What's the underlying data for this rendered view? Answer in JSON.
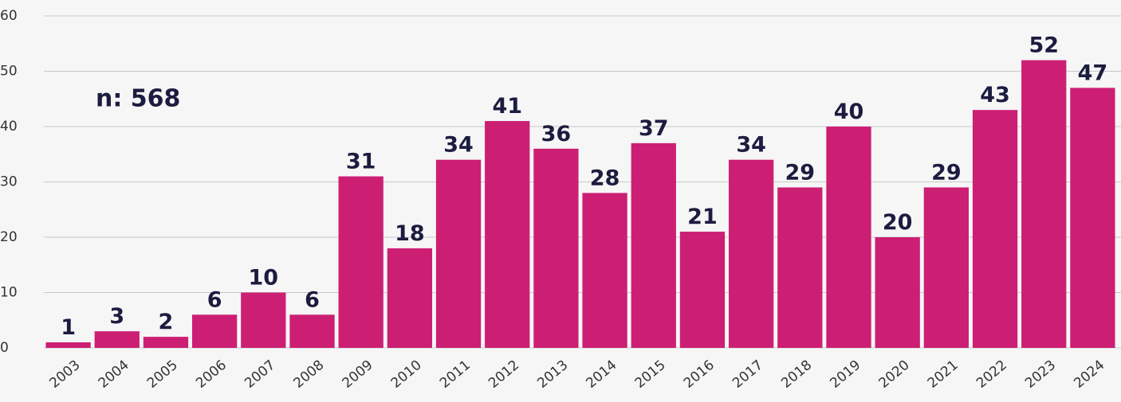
{
  "chart_data": {
    "type": "bar",
    "categories": [
      "2003",
      "2004",
      "2005",
      "2006",
      "2007",
      "2008",
      "2009",
      "2010",
      "2011",
      "2012",
      "2013",
      "2014",
      "2015",
      "2016",
      "2017",
      "2018",
      "2019",
      "2020",
      "2021",
      "2022",
      "2023",
      "2024"
    ],
    "values": [
      1,
      3,
      2,
      6,
      10,
      6,
      31,
      18,
      34,
      41,
      36,
      28,
      37,
      21,
      34,
      29,
      40,
      20,
      29,
      43,
      52,
      47
    ],
    "color": "#cc1f74",
    "ylim": [
      0,
      60
    ],
    "yticks": [
      0,
      10,
      20,
      30,
      40,
      50,
      60
    ],
    "grid": true,
    "annotation": "n: 568"
  }
}
